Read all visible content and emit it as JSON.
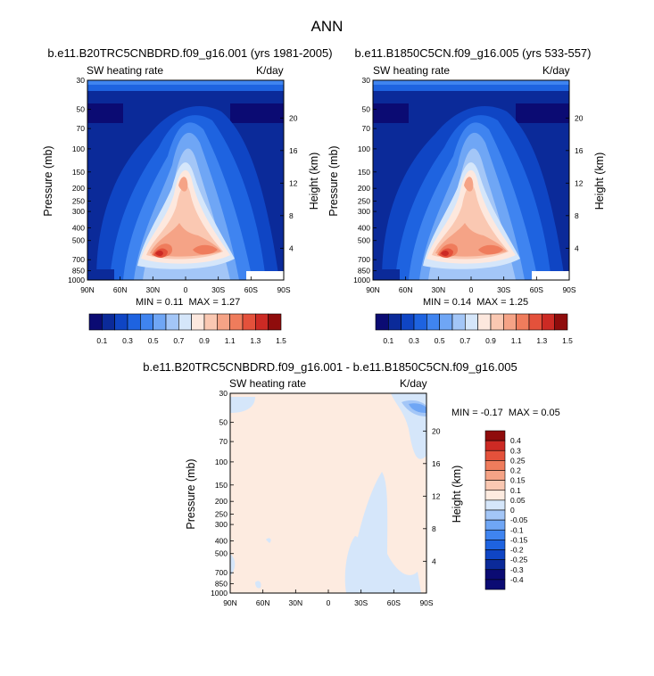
{
  "title": "ANN",
  "colors": {
    "blue_scale": [
      "#0b0b73",
      "#0b2a99",
      "#0f45c4",
      "#1e63e0",
      "#3f84f0",
      "#6fa6f5",
      "#a3c6f7",
      "#d5e6fa"
    ],
    "red_scale": [
      "#fde8de",
      "#fac8b2",
      "#f5a386",
      "#ef7c5c",
      "#e4513b",
      "#cc2a24",
      "#8f0c0c"
    ],
    "diff_scale": [
      "#0b0b73",
      "#0b2a99",
      "#0f45c4",
      "#1e63e0",
      "#3f84f0",
      "#6fa6f5",
      "#a3c6f7",
      "#d5e6fa",
      "#fdebe0",
      "#fac8b2",
      "#f5a386",
      "#ef7c5c",
      "#e4513b",
      "#cc2a24",
      "#8f0c0c"
    ]
  },
  "chart_data": [
    {
      "type": "heatmap",
      "title": "b.e11.B20TRC5CNBDRD.f09_g16.001 (yrs 1981-2005)",
      "left_label": "SW heating rate",
      "right_label": "K/day",
      "ylabel": "Pressure (mb)",
      "y2label": "Height (km)",
      "x_ticks": [
        "90N",
        "60N",
        "30N",
        "0",
        "30S",
        "60S",
        "90S"
      ],
      "y_ticks": [
        "30",
        "50",
        "70",
        "100",
        "150",
        "200",
        "250",
        "300",
        "400",
        "500",
        "700",
        "850",
        "1000"
      ],
      "y2_ticks": [
        "20",
        "16",
        "12",
        "8",
        "4"
      ],
      "min_label": "MIN =",
      "min": "0.11",
      "max_label": "MAX =",
      "max": "1.27",
      "colorbar_labels": [
        "0.1",
        "0.3",
        "0.5",
        "0.7",
        "0.9",
        "1.1",
        "1.3",
        "1.5"
      ]
    },
    {
      "type": "heatmap",
      "title": "b.e11.B1850C5CN.f09_g16.005 (yrs 533-557)",
      "left_label": "SW heating rate",
      "right_label": "K/day",
      "ylabel": "Pressure (mb)",
      "y2label": "Height (km)",
      "x_ticks": [
        "90N",
        "60N",
        "30N",
        "0",
        "30S",
        "60S",
        "90S"
      ],
      "y_ticks": [
        "30",
        "50",
        "70",
        "100",
        "150",
        "200",
        "250",
        "300",
        "400",
        "500",
        "700",
        "850",
        "1000"
      ],
      "y2_ticks": [
        "20",
        "16",
        "12",
        "8",
        "4"
      ],
      "min_label": "MIN =",
      "min": "0.14",
      "max_label": "MAX =",
      "max": "1.25",
      "colorbar_labels": [
        "0.1",
        "0.3",
        "0.5",
        "0.7",
        "0.9",
        "1.1",
        "1.3",
        "1.5"
      ]
    },
    {
      "type": "heatmap",
      "title": "b.e11.B20TRC5CNBDRD.f09_g16.001 - b.e11.B1850C5CN.f09_g16.005",
      "left_label": "SW heating rate",
      "right_label": "K/day",
      "ylabel": "Pressure (mb)",
      "y2label": "Height (km)",
      "x_ticks": [
        "90N",
        "60N",
        "30N",
        "0",
        "30S",
        "60S",
        "90S"
      ],
      "y_ticks": [
        "30",
        "50",
        "70",
        "100",
        "150",
        "200",
        "250",
        "300",
        "400",
        "500",
        "700",
        "850",
        "1000"
      ],
      "y2_ticks": [
        "20",
        "16",
        "12",
        "8",
        "4"
      ],
      "min_label": "MIN =",
      "min": "-0.17",
      "max_label": "MAX =",
      "max": "0.05",
      "colorbar_labels": [
        "0.4",
        "0.3",
        "0.25",
        "0.2",
        "0.15",
        "0.1",
        "0.05",
        "0",
        "-0.05",
        "-0.1",
        "-0.15",
        "-0.2",
        "-0.25",
        "-0.3",
        "-0.4"
      ]
    }
  ]
}
